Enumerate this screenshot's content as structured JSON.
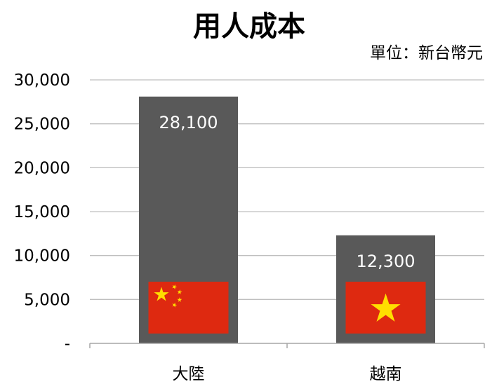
{
  "chart_data": {
    "type": "bar",
    "title": "用人成本",
    "unit_label": "單位：新台幣元",
    "categories": [
      "大陸",
      "越南"
    ],
    "values": [
      28100,
      12300
    ],
    "data_labels": [
      "28,100",
      "12,300"
    ],
    "y_ticks": [
      0,
      5000,
      10000,
      15000,
      20000,
      25000,
      30000
    ],
    "y_tick_labels": [
      "-",
      "5,000",
      "10,000",
      "15,000",
      "20,000",
      "25,000",
      "30,000"
    ],
    "ylim": [
      0,
      30000
    ],
    "grid": true,
    "bar_color": "#595959",
    "grid_color": "#bfbfbf",
    "flags": [
      "china-flag",
      "vietnam-flag"
    ],
    "flag_red": "#de2910",
    "flag_yellow": "#ffde00"
  }
}
